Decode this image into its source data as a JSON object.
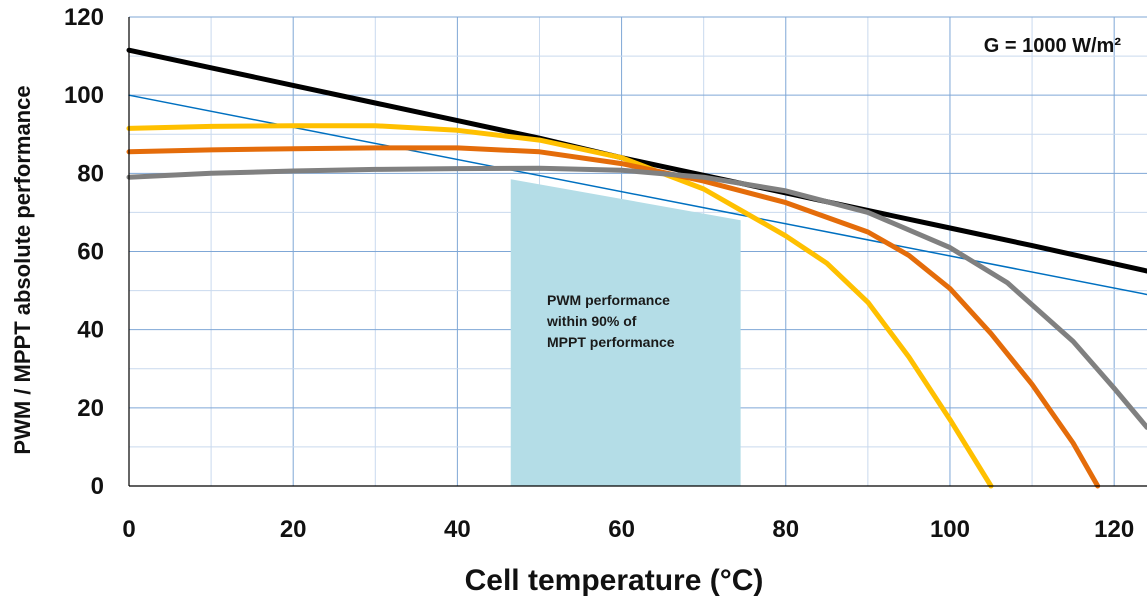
{
  "chart_data": {
    "type": "line",
    "xlabel": "Cell temperature (°C)",
    "ylabel": "PWM / MPPT absolute performance",
    "annotation": "G = 1000 W/m²",
    "xlim": [
      0,
      124
    ],
    "ylim": [
      0,
      120
    ],
    "x_ticks": [
      0,
      20,
      40,
      60,
      80,
      100,
      120
    ],
    "y_ticks": [
      0,
      20,
      40,
      60,
      80,
      100,
      120
    ],
    "grid": true,
    "series": [
      {
        "color": "#000000",
        "x": [
          0,
          10,
          20,
          30,
          40,
          50,
          60,
          70,
          80,
          90,
          100,
          110,
          124
        ],
        "y": [
          111.5,
          107,
          102.5,
          98,
          93.5,
          89,
          84,
          79.5,
          75,
          70.5,
          66,
          61.5,
          55
        ]
      },
      {
        "color": "#0070C0",
        "x": [
          0,
          124
        ],
        "y": [
          100,
          49
        ]
      },
      {
        "color": "#FFC000",
        "x": [
          0,
          10,
          20,
          30,
          40,
          50,
          60,
          70,
          75,
          80,
          85,
          90,
          95,
          100,
          105
        ],
        "y": [
          91.5,
          92,
          92.2,
          92.2,
          91,
          88.5,
          84,
          76,
          70,
          64,
          57,
          47,
          33,
          17,
          0
        ]
      },
      {
        "color": "#E46C0A",
        "x": [
          0,
          10,
          20,
          30,
          40,
          50,
          60,
          70,
          80,
          90,
          95,
          100,
          105,
          110,
          115,
          118
        ],
        "y": [
          85.5,
          86,
          86.3,
          86.5,
          86.5,
          85.5,
          82.5,
          78,
          72.5,
          65,
          59,
          50.5,
          39,
          26,
          11,
          0
        ]
      },
      {
        "color": "#808080",
        "x": [
          0,
          10,
          20,
          30,
          40,
          50,
          60,
          70,
          80,
          90,
          100,
          107,
          115,
          120,
          124
        ],
        "y": [
          79,
          80,
          80.6,
          81,
          81.2,
          81.3,
          80.8,
          79,
          75.5,
          70,
          61,
          52,
          37,
          25,
          15
        ]
      }
    ],
    "shaded_region": {
      "label_lines": [
        "PWM performance",
        "within 90% of",
        "MPPT performance"
      ],
      "color": "#B4DDE7",
      "x_start": 46.5,
      "x_end": 74.5,
      "top_start": 78.5,
      "top_end": 68
    }
  }
}
